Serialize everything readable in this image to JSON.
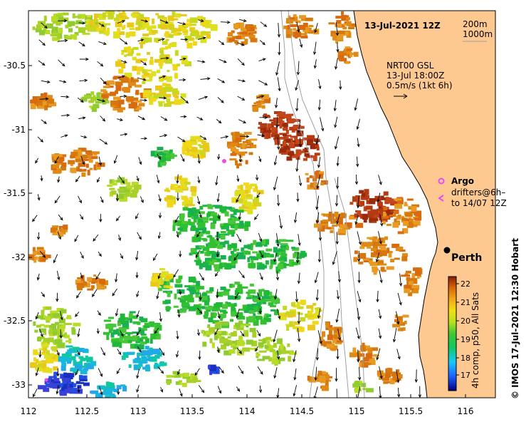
{
  "map": {
    "date_label": "13-Jul-2021 12Z",
    "isobath_legend": [
      "200m",
      "1000m"
    ],
    "current_info": [
      "NRT00 GSL",
      "13-Jul 18:00Z",
      "0.5m/s (1kt 6h)"
    ],
    "argo_label": "Argo",
    "drifters_label": [
      "drifters@6h–",
      "to 14/07 12Z"
    ],
    "city_label": "Perth",
    "lon_ticks": [
      "112",
      "112.5",
      "113",
      "113.5",
      "114",
      "114.5",
      "115",
      "115.5",
      "116"
    ],
    "lat_ticks": [
      "-30.5",
      "-31",
      "-31.5",
      "-32",
      "-32.5",
      "-33"
    ],
    "colorbar": {
      "ticks": [
        "22",
        "21",
        "20",
        "19",
        "18",
        "17"
      ],
      "title": "4h comp, p50, All Sats"
    },
    "side_label": "©  IMOS 17-Jul-2021 12:30 Hobart",
    "colors": {
      "land": "#fdc991",
      "coast": "#000000",
      "isobath": "#a0a0a0",
      "argo": "#e84cf0"
    }
  }
}
